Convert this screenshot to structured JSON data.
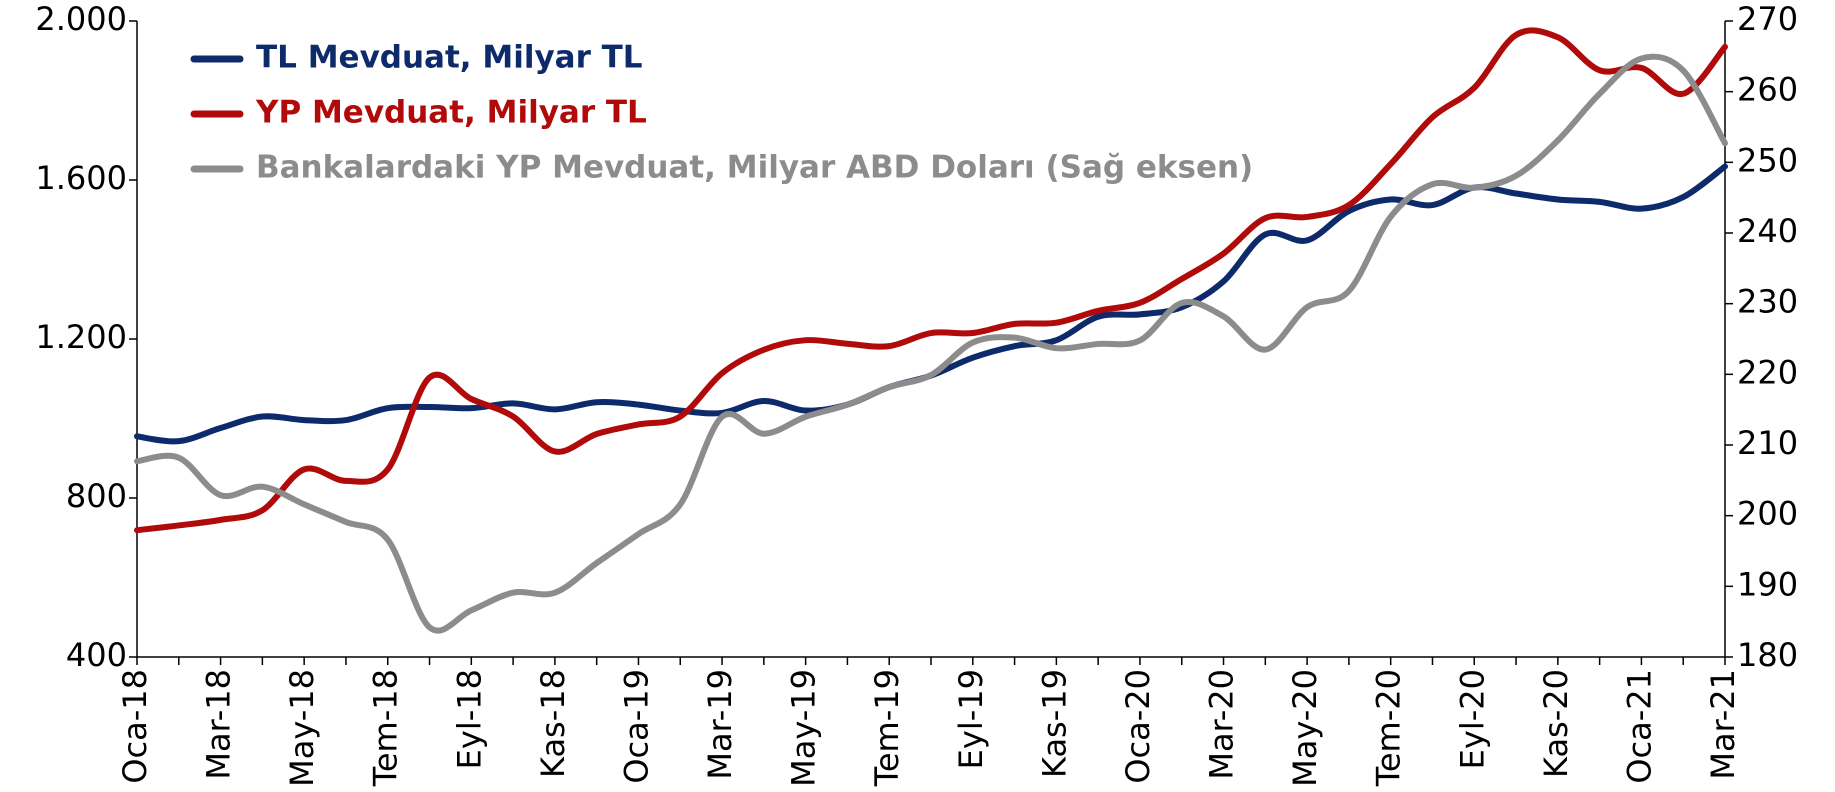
{
  "chart_data": {
    "type": "line",
    "categories": [
      "Oca-18",
      null,
      "Mar-18",
      null,
      "May-18",
      null,
      "Tem-18",
      null,
      "Eyl-18",
      null,
      "Kas-18",
      null,
      "Oca-19",
      null,
      "Mar-19",
      null,
      "May-19",
      null,
      "Tem-19",
      null,
      "Eyl-19",
      null,
      "Kas-19",
      null,
      "Oca-20",
      null,
      "Mar-20",
      null,
      "May-20",
      null,
      "Tem-20",
      null,
      "Eyl-20",
      null,
      "Kas-20",
      null,
      "Oca-21",
      null,
      "Mar-21"
    ],
    "series": [
      {
        "name": "TL Mevduat, Milyar TL",
        "color": "#0d2a6b",
        "axis": "y",
        "values": [
          955,
          943,
          976,
          1005,
          996,
          996,
          1026,
          1029,
          1026,
          1038,
          1023,
          1041,
          1035,
          1020,
          1014,
          1044,
          1020,
          1035,
          1079,
          1108,
          1153,
          1182,
          1197,
          1256,
          1262,
          1280,
          1345,
          1463,
          1448,
          1522,
          1551,
          1537,
          1581,
          1566,
          1551,
          1545,
          1528,
          1557,
          1634
        ]
      },
      {
        "name": "YP Mevduat, Milyar TL",
        "color": "#b00a0a",
        "axis": "y",
        "values": [
          719,
          731,
          745,
          769,
          872,
          843,
          872,
          1103,
          1049,
          1005,
          917,
          961,
          985,
          1005,
          1114,
          1173,
          1197,
          1188,
          1182,
          1215,
          1215,
          1238,
          1241,
          1271,
          1291,
          1351,
          1415,
          1504,
          1507,
          1537,
          1640,
          1758,
          1832,
          1965,
          1959,
          1876,
          1882,
          1817,
          1935
        ]
      },
      {
        "name": "Bankalardaki YP Mevduat, Milyar ABD Doları (Sağ eksen)",
        "color": "#8c8c8c",
        "axis": "y2",
        "values": [
          207.7,
          208.2,
          202.9,
          204.1,
          201.6,
          199.1,
          196.6,
          184.2,
          186.6,
          189.1,
          189.1,
          193.3,
          197.4,
          201.6,
          214.0,
          211.6,
          214.0,
          215.7,
          218.2,
          219.9,
          224.5,
          225.2,
          223.7,
          224.3,
          224.8,
          230.1,
          228.2,
          223.5,
          229.5,
          231.8,
          242.3,
          246.9,
          246.4,
          248.1,
          253.1,
          259.7,
          264.7,
          263.0,
          252.7
        ]
      }
    ],
    "ylim": [
      400,
      2000
    ],
    "yticks": [
      400,
      800,
      {
        "value": 1200,
        "label": "1.200"
      },
      {
        "value": 1600,
        "label": "1.600"
      },
      {
        "value": 2000,
        "label": "2.000"
      }
    ],
    "y2lim": [
      180,
      270
    ],
    "y2ticks": [
      180,
      190,
      200,
      210,
      220,
      230,
      240,
      250,
      260,
      270
    ],
    "legend": "upper left",
    "grid": false
  }
}
